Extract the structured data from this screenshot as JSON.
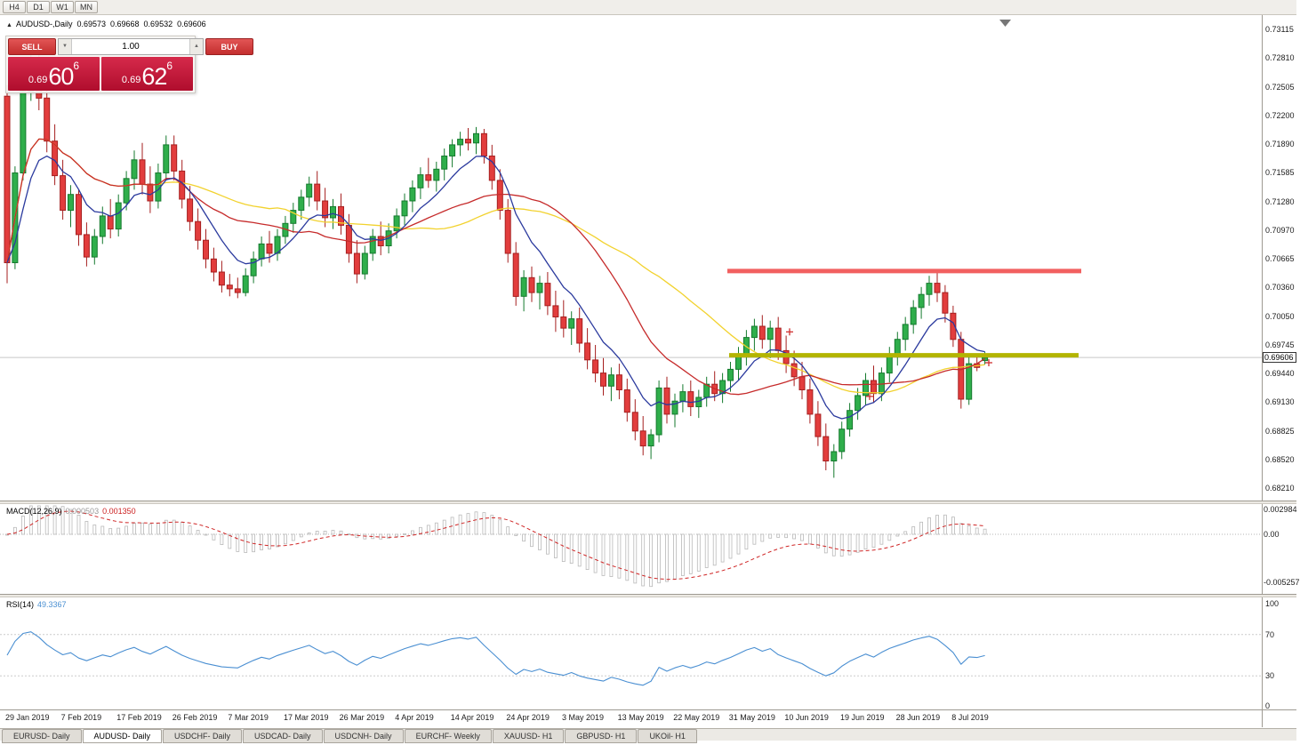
{
  "toolbar": {
    "timeframes": [
      "H4",
      "D1",
      "W1",
      "MN"
    ]
  },
  "chart_header": {
    "symbol": "AUDUSD-,Daily",
    "open": "0.69573",
    "high": "0.69668",
    "low": "0.69532",
    "close": "0.69606"
  },
  "trade_panel": {
    "sell_label": "SELL",
    "buy_label": "BUY",
    "volume": "1.00",
    "sell_price": {
      "prefix": "0.69",
      "big": "60",
      "sup": "6"
    },
    "buy_price": {
      "prefix": "0.69",
      "big": "62",
      "sup": "6"
    }
  },
  "price_axis": {
    "labels": [
      "0.73115",
      "0.72810",
      "0.72505",
      "0.72200",
      "0.71890",
      "0.71585",
      "0.71280",
      "0.70970",
      "0.70665",
      "0.70360",
      "0.70050",
      "0.69745",
      "0.69440",
      "0.69130",
      "0.68825",
      "0.68520",
      "0.68210"
    ],
    "current": "0.69606"
  },
  "macd_panel": {
    "label": "MACD(12,26,9)",
    "value_main": "0.000503",
    "value_signal": "0.001350",
    "axis": [
      "0.002984",
      "0.00",
      "-0.005257"
    ]
  },
  "rsi_panel": {
    "label": "RSI(14)",
    "value": "49.3367",
    "axis": [
      "100",
      "70",
      "30",
      "0"
    ]
  },
  "tabs": [
    {
      "label": "EURUSD- Daily",
      "active": false
    },
    {
      "label": "AUDUSD- Daily",
      "active": true
    },
    {
      "label": "USDCHF- Daily",
      "active": false
    },
    {
      "label": "USDCAD- Daily",
      "active": false
    },
    {
      "label": "USDCNH- Daily",
      "active": false
    },
    {
      "label": "EURCHF- Weekly",
      "active": false
    },
    {
      "label": "XAUUSD- H1",
      "active": false
    },
    {
      "label": "GBPUSD- H1",
      "active": false
    },
    {
      "label": "UKOil- H1",
      "active": false
    }
  ],
  "colors": {
    "candle_up": "#2fae4b",
    "candle_up_border": "#157a2e",
    "candle_down": "#e23d3d",
    "candle_down_border": "#a61f1f",
    "ma_slow": "#f2d22e",
    "ma_mid": "#c62b2b",
    "ma_fast": "#2b3a9e",
    "resistance": "#f26060",
    "support": "#b3b400",
    "macd_hist": "#b9b9b9",
    "macd_signal": "#cf2525",
    "rsi_line": "#4a8fd2",
    "bid_line": "#c8c8c8"
  },
  "chart_data": {
    "type": "candlestick",
    "symbol": "AUDUSD",
    "timeframe": "Daily",
    "ylim": [
      0.6821,
      0.73115
    ],
    "x_labels": [
      "29 Jan 2019",
      "7 Feb 2019",
      "17 Feb 2019",
      "26 Feb 2019",
      "7 Mar 2019",
      "17 Mar 2019",
      "26 Mar 2019",
      "4 Apr 2019",
      "14 Apr 2019",
      "24 Apr 2019",
      "3 May 2019",
      "13 May 2019",
      "22 May 2019",
      "31 May 2019",
      "10 Jun 2019",
      "19 Jun 2019",
      "28 Jun 2019",
      "8 Jul 2019"
    ],
    "candles": [
      [
        0.724,
        0.7252,
        0.704,
        0.7062
      ],
      [
        0.7062,
        0.7165,
        0.7055,
        0.7158
      ],
      [
        0.7158,
        0.7252,
        0.715,
        0.7245
      ],
      [
        0.7245,
        0.729,
        0.7235,
        0.7268
      ],
      [
        0.7268,
        0.7288,
        0.7225,
        0.7238
      ],
      [
        0.7238,
        0.7255,
        0.718,
        0.7192
      ],
      [
        0.7192,
        0.721,
        0.7145,
        0.7155
      ],
      [
        0.7155,
        0.7172,
        0.7108,
        0.7118
      ],
      [
        0.7118,
        0.7145,
        0.71,
        0.7135
      ],
      [
        0.7135,
        0.714,
        0.708,
        0.7092
      ],
      [
        0.7092,
        0.7105,
        0.7058,
        0.7068
      ],
      [
        0.7068,
        0.7098,
        0.706,
        0.709
      ],
      [
        0.709,
        0.7122,
        0.7082,
        0.7112
      ],
      [
        0.7112,
        0.713,
        0.7088,
        0.7098
      ],
      [
        0.7098,
        0.7135,
        0.709,
        0.7126
      ],
      [
        0.7126,
        0.716,
        0.7118,
        0.7152
      ],
      [
        0.7152,
        0.7182,
        0.714,
        0.7172
      ],
      [
        0.7172,
        0.719,
        0.7135,
        0.7146
      ],
      [
        0.7146,
        0.7165,
        0.7115,
        0.7128
      ],
      [
        0.7128,
        0.7168,
        0.712,
        0.7158
      ],
      [
        0.7158,
        0.7198,
        0.715,
        0.7188
      ],
      [
        0.7188,
        0.7198,
        0.715,
        0.716
      ],
      [
        0.716,
        0.7172,
        0.712,
        0.713
      ],
      [
        0.713,
        0.7144,
        0.7096,
        0.7106
      ],
      [
        0.7106,
        0.712,
        0.7076,
        0.7086
      ],
      [
        0.7086,
        0.7098,
        0.7056,
        0.7066
      ],
      [
        0.7066,
        0.7078,
        0.7042,
        0.7052
      ],
      [
        0.7052,
        0.7064,
        0.703,
        0.7038
      ],
      [
        0.7038,
        0.705,
        0.7026,
        0.7034
      ],
      [
        0.7034,
        0.7046,
        0.7024,
        0.703
      ],
      [
        0.703,
        0.7056,
        0.7026,
        0.7048
      ],
      [
        0.7048,
        0.7074,
        0.704,
        0.7066
      ],
      [
        0.7066,
        0.709,
        0.7058,
        0.7082
      ],
      [
        0.7082,
        0.7096,
        0.7062,
        0.7072
      ],
      [
        0.7072,
        0.7098,
        0.7064,
        0.709
      ],
      [
        0.709,
        0.7112,
        0.7082,
        0.7104
      ],
      [
        0.7104,
        0.7126,
        0.7094,
        0.7118
      ],
      [
        0.7118,
        0.714,
        0.7108,
        0.7132
      ],
      [
        0.7132,
        0.7154,
        0.7122,
        0.7146
      ],
      [
        0.7146,
        0.716,
        0.7118,
        0.7128
      ],
      [
        0.7128,
        0.7142,
        0.71,
        0.711
      ],
      [
        0.711,
        0.713,
        0.7098,
        0.7122
      ],
      [
        0.7122,
        0.7136,
        0.7092,
        0.7102
      ],
      [
        0.7102,
        0.7114,
        0.7062,
        0.7072
      ],
      [
        0.7072,
        0.7086,
        0.704,
        0.705
      ],
      [
        0.705,
        0.708,
        0.7044,
        0.7072
      ],
      [
        0.7072,
        0.7098,
        0.7064,
        0.709
      ],
      [
        0.709,
        0.7106,
        0.707,
        0.708
      ],
      [
        0.708,
        0.7104,
        0.7072,
        0.7096
      ],
      [
        0.7096,
        0.712,
        0.7088,
        0.7112
      ],
      [
        0.7112,
        0.7136,
        0.7102,
        0.7128
      ],
      [
        0.7128,
        0.715,
        0.7116,
        0.7142
      ],
      [
        0.7142,
        0.7164,
        0.713,
        0.7156
      ],
      [
        0.7156,
        0.7174,
        0.7142,
        0.715
      ],
      [
        0.715,
        0.717,
        0.7138,
        0.7162
      ],
      [
        0.7162,
        0.7184,
        0.715,
        0.7176
      ],
      [
        0.7176,
        0.7194,
        0.7164,
        0.7188
      ],
      [
        0.7188,
        0.7202,
        0.7176,
        0.7194
      ],
      [
        0.7194,
        0.7206,
        0.7182,
        0.719
      ],
      [
        0.719,
        0.7207,
        0.7178,
        0.72
      ],
      [
        0.72,
        0.7205,
        0.7168,
        0.7176
      ],
      [
        0.7176,
        0.7188,
        0.714,
        0.715
      ],
      [
        0.715,
        0.7162,
        0.7108,
        0.7118
      ],
      [
        0.7118,
        0.713,
        0.7062,
        0.7072
      ],
      [
        0.7072,
        0.7084,
        0.7016,
        0.7026
      ],
      [
        0.7026,
        0.7054,
        0.701,
        0.7046
      ],
      [
        0.7046,
        0.7058,
        0.702,
        0.703
      ],
      [
        0.703,
        0.7048,
        0.7012,
        0.704
      ],
      [
        0.704,
        0.7052,
        0.7006,
        0.7016
      ],
      [
        0.7016,
        0.7032,
        0.6988,
        0.7004
      ],
      [
        0.7004,
        0.7022,
        0.6982,
        0.6992
      ],
      [
        0.6992,
        0.701,
        0.6974,
        0.7002
      ],
      [
        0.7002,
        0.7014,
        0.6966,
        0.6976
      ],
      [
        0.6976,
        0.6992,
        0.6948,
        0.6958
      ],
      [
        0.6958,
        0.6974,
        0.6934,
        0.6944
      ],
      [
        0.6944,
        0.696,
        0.692,
        0.693
      ],
      [
        0.693,
        0.695,
        0.6914,
        0.6942
      ],
      [
        0.6942,
        0.6954,
        0.6916,
        0.6926
      ],
      [
        0.6926,
        0.6938,
        0.6892,
        0.6902
      ],
      [
        0.6902,
        0.6916,
        0.6872,
        0.6882
      ],
      [
        0.6882,
        0.6898,
        0.6856,
        0.6866
      ],
      [
        0.6866,
        0.6884,
        0.6852,
        0.6878
      ],
      [
        0.6878,
        0.6936,
        0.687,
        0.6928
      ],
      [
        0.6928,
        0.694,
        0.689,
        0.69
      ],
      [
        0.69,
        0.6922,
        0.6886,
        0.6914
      ],
      [
        0.6914,
        0.6932,
        0.6902,
        0.6924
      ],
      [
        0.6924,
        0.6936,
        0.6898,
        0.6908
      ],
      [
        0.6908,
        0.6926,
        0.6896,
        0.6918
      ],
      [
        0.6918,
        0.694,
        0.6908,
        0.6932
      ],
      [
        0.6932,
        0.6946,
        0.6914,
        0.6922
      ],
      [
        0.6922,
        0.6944,
        0.6912,
        0.6936
      ],
      [
        0.6936,
        0.6956,
        0.6924,
        0.6948
      ],
      [
        0.6948,
        0.6972,
        0.6936,
        0.6964
      ],
      [
        0.6964,
        0.699,
        0.6952,
        0.6982
      ],
      [
        0.6982,
        0.7002,
        0.6968,
        0.6994
      ],
      [
        0.6994,
        0.7006,
        0.697,
        0.698
      ],
      [
        0.698,
        0.7,
        0.696,
        0.6992
      ],
      [
        0.6992,
        0.7004,
        0.6958,
        0.6968
      ],
      [
        0.6968,
        0.6984,
        0.6944,
        0.6954
      ],
      [
        0.6954,
        0.6968,
        0.693,
        0.694
      ],
      [
        0.694,
        0.6956,
        0.6916,
        0.6926
      ],
      [
        0.6926,
        0.6938,
        0.689,
        0.69
      ],
      [
        0.69,
        0.6914,
        0.6866,
        0.6876
      ],
      [
        0.6876,
        0.689,
        0.684,
        0.685
      ],
      [
        0.685,
        0.6868,
        0.6832,
        0.686
      ],
      [
        0.686,
        0.6892,
        0.6852,
        0.6884
      ],
      [
        0.6884,
        0.6912,
        0.6876,
        0.6904
      ],
      [
        0.6904,
        0.6928,
        0.6894,
        0.692
      ],
      [
        0.692,
        0.6944,
        0.691,
        0.6936
      ],
      [
        0.6936,
        0.6952,
        0.6912,
        0.6922
      ],
      [
        0.6922,
        0.695,
        0.6914,
        0.6944
      ],
      [
        0.6944,
        0.6972,
        0.6934,
        0.6964
      ],
      [
        0.6964,
        0.6988,
        0.6952,
        0.698
      ],
      [
        0.698,
        0.7004,
        0.6968,
        0.6996
      ],
      [
        0.6996,
        0.7022,
        0.6986,
        0.7014
      ],
      [
        0.7014,
        0.7036,
        0.7002,
        0.7028
      ],
      [
        0.7028,
        0.7048,
        0.7016,
        0.704
      ],
      [
        0.704,
        0.7052,
        0.702,
        0.703
      ],
      [
        0.703,
        0.7038,
        0.6998,
        0.7008
      ],
      [
        0.7008,
        0.7016,
        0.6972,
        0.698
      ],
      [
        0.698,
        0.6988,
        0.6906,
        0.6916
      ],
      [
        0.6916,
        0.6962,
        0.691,
        0.6954
      ],
      [
        0.6954,
        0.6964,
        0.6946,
        0.695
      ],
      [
        0.69573,
        0.69668,
        0.69532,
        0.69606
      ]
    ],
    "moving_averages": [
      {
        "type": "SMA",
        "period": 34,
        "color_key": "ma_slow"
      },
      {
        "type": "SMA",
        "period": 20,
        "color_key": "ma_mid"
      },
      {
        "type": "EMA",
        "period": 8,
        "color_key": "ma_fast"
      }
    ],
    "overlays": {
      "resistance_line": {
        "price": 0.7053,
        "x1": 818,
        "x2": 1216
      },
      "support_line": {
        "price": 0.6963,
        "x1": 820,
        "x2": 1213
      },
      "current_price": 0.69606,
      "markers": [
        {
          "x": 888,
          "price": 0.6988
        },
        {
          "x": 978,
          "price": 0.6919
        },
        {
          "x": 1112,
          "price": 0.6955
        }
      ]
    },
    "indicators": {
      "macd": {
        "fast": 12,
        "slow": 26,
        "signal": 9,
        "current_main": 0.000503,
        "current_signal": 0.00135
      },
      "rsi": {
        "period": 14,
        "current": 49.3367,
        "levels": [
          70,
          30
        ]
      }
    }
  }
}
